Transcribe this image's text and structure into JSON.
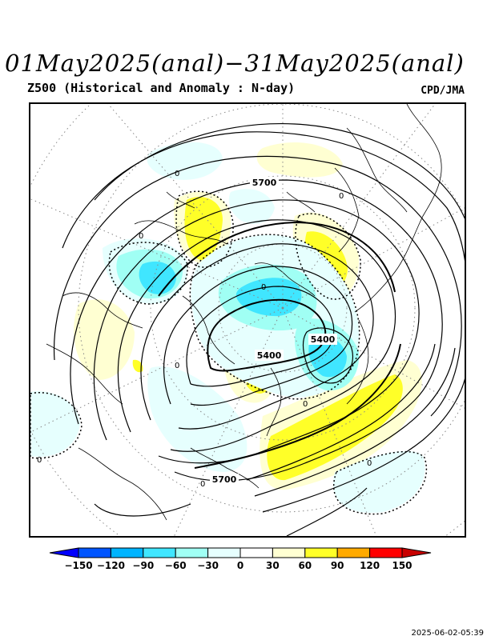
{
  "title": "01May2025(anal)−31May2025(anal)",
  "subtitle": "Z500 (Historical and Anomaly : N-day)",
  "agency": "CPD/JMA",
  "timestamp": "2025-06-02-05:39",
  "contour_labels": {
    "h5700_top": "5700",
    "h5400_center": "5400",
    "h5400_east": "5400",
    "h5700_bottom": "5700"
  },
  "zero_labels": [
    "0",
    "0",
    "0",
    "0",
    "0",
    "0",
    "0",
    "0",
    "0"
  ],
  "colorbar": {
    "ticks": [
      "−150",
      "−120",
      "−90",
      "−60",
      "−30",
      "0",
      "30",
      "60",
      "90",
      "120",
      "150"
    ],
    "colors": [
      "#0000ff",
      "#0055ff",
      "#00b4ff",
      "#40e6ff",
      "#a0fff4",
      "#e6fffe",
      "#ffffff",
      "#ffffd2",
      "#ffff28",
      "#ffaa00",
      "#ff0000",
      "#c80000"
    ]
  },
  "colors": {
    "positive_light": "#ffffd2",
    "positive_strong": "#ffff28",
    "negative_light": "#e6fffe",
    "negative_mid": "#a0fff4",
    "negative_strong": "#40e6ff",
    "contour": "#000000"
  }
}
